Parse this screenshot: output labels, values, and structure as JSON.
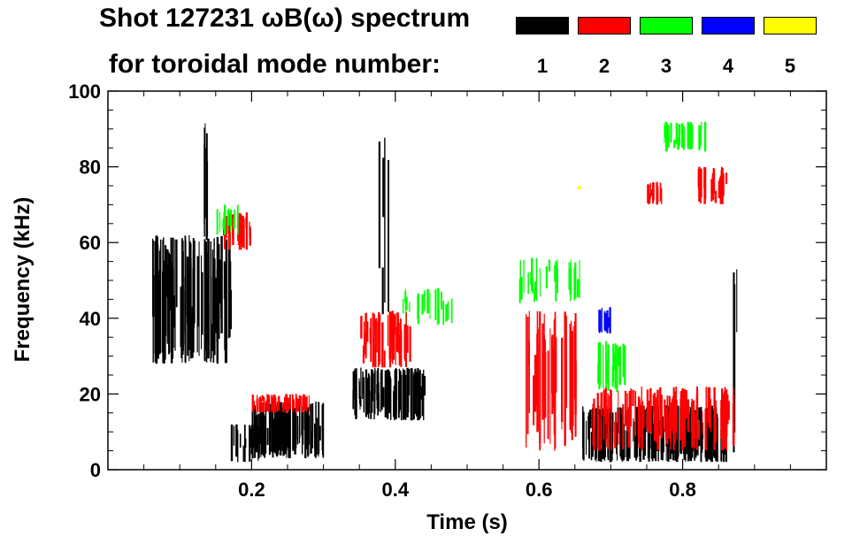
{
  "title": {
    "line1": "Shot 127231 ωB(ω) spectrum",
    "line2": "for toroidal mode number:"
  },
  "legend": [
    {
      "label": "1",
      "color": "#000000"
    },
    {
      "label": "2",
      "color": "#ff0000"
    },
    {
      "label": "3",
      "color": "#00ff00"
    },
    {
      "label": "4",
      "color": "#0000ff"
    },
    {
      "label": "5",
      "color": "#ffff00"
    }
  ],
  "chart_data": {
    "type": "heatmap",
    "title": "Shot 127231 ωB(ω) spectrum for toroidal mode number",
    "xlabel": "Time (s)",
    "ylabel": "Frequency (kHz)",
    "xlim": [
      0.0,
      1.0
    ],
    "ylim": [
      0,
      100
    ],
    "xticks": [
      0.2,
      0.4,
      0.6,
      0.8
    ],
    "xtick_labels": [
      "0.2",
      "0.4",
      "0.6",
      "0.8"
    ],
    "yticks": [
      0,
      20,
      40,
      60,
      80,
      100
    ],
    "ytick_labels": [
      "0",
      "20",
      "40",
      "60",
      "80",
      "100"
    ],
    "series": [
      {
        "name": "n=1",
        "color": "#000000",
        "regions": [
          {
            "t": [
              0.06,
              0.17
            ],
            "f": [
              28,
              62
            ],
            "density": 1.0
          },
          {
            "t": [
              0.12,
              0.14
            ],
            "f": [
              60,
              92
            ],
            "density": 0.35
          },
          {
            "t": [
              0.17,
              0.21
            ],
            "f": [
              2,
              12
            ],
            "density": 0.5
          },
          {
            "t": [
              0.2,
              0.3
            ],
            "f": [
              3,
              18
            ],
            "density": 1.0
          },
          {
            "t": [
              0.34,
              0.44
            ],
            "f": [
              13,
              27
            ],
            "density": 0.9
          },
          {
            "t": [
              0.37,
              0.39
            ],
            "f": [
              40,
              88
            ],
            "density": 0.3
          },
          {
            "t": [
              0.66,
              0.86
            ],
            "f": [
              2,
              17
            ],
            "density": 1.0
          },
          {
            "t": [
              0.87,
              0.875
            ],
            "f": [
              3,
              58
            ],
            "density": 0.5
          }
        ]
      },
      {
        "name": "n=2",
        "color": "#ff0000",
        "regions": [
          {
            "t": [
              0.16,
              0.2
            ],
            "f": [
              58,
              68
            ],
            "density": 0.8
          },
          {
            "t": [
              0.2,
              0.28
            ],
            "f": [
              15,
              20
            ],
            "density": 0.7
          },
          {
            "t": [
              0.35,
              0.42
            ],
            "f": [
              27,
              42
            ],
            "density": 0.7
          },
          {
            "t": [
              0.58,
              0.65
            ],
            "f": [
              5,
              42
            ],
            "density": 0.6
          },
          {
            "t": [
              0.67,
              0.87
            ],
            "f": [
              5,
              22
            ],
            "density": 0.6
          },
          {
            "t": [
              0.75,
              0.77
            ],
            "f": [
              70,
              76
            ],
            "density": 0.6
          },
          {
            "t": [
              0.82,
              0.86
            ],
            "f": [
              70,
              80
            ],
            "density": 0.7
          }
        ]
      },
      {
        "name": "n=3",
        "color": "#00ff00",
        "regions": [
          {
            "t": [
              0.15,
              0.18
            ],
            "f": [
              62,
              70
            ],
            "density": 0.4
          },
          {
            "t": [
              0.41,
              0.48
            ],
            "f": [
              38,
              48
            ],
            "density": 0.3
          },
          {
            "t": [
              0.57,
              0.66
            ],
            "f": [
              44,
              56
            ],
            "density": 0.3
          },
          {
            "t": [
              0.68,
              0.72
            ],
            "f": [
              20,
              34
            ],
            "density": 0.5
          },
          {
            "t": [
              0.77,
              0.83
            ],
            "f": [
              84,
              92
            ],
            "density": 0.5
          }
        ]
      },
      {
        "name": "n=4",
        "color": "#0000ff",
        "regions": [
          {
            "t": [
              0.68,
              0.7
            ],
            "f": [
              36,
              43
            ],
            "density": 0.6
          }
        ]
      },
      {
        "name": "n=5",
        "color": "#ffff00",
        "regions": [
          {
            "t": [
              0.65,
              0.66
            ],
            "f": [
              74,
              75
            ],
            "density": 0.3
          }
        ]
      }
    ]
  }
}
